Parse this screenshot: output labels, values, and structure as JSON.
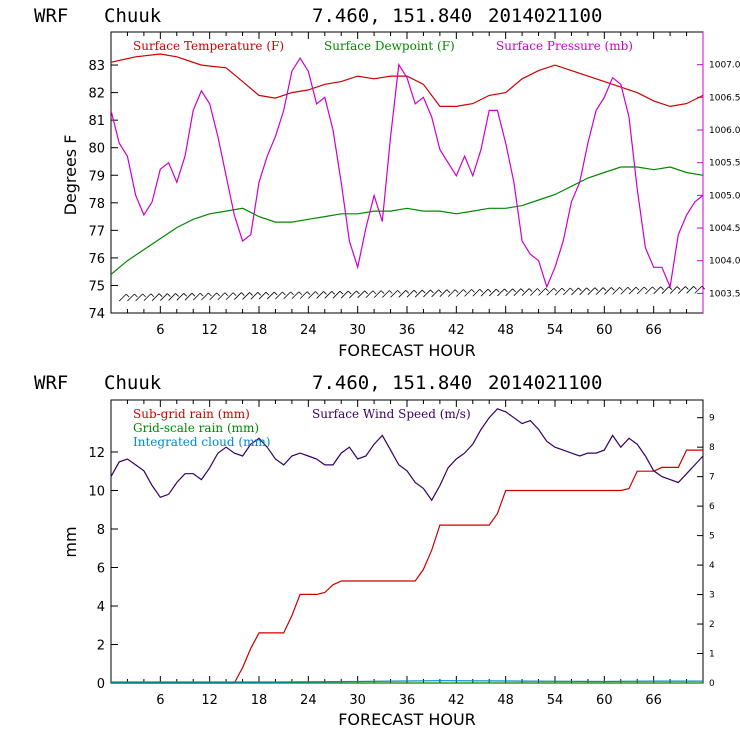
{
  "chart_data": [
    {
      "type": "line",
      "header": {
        "model": "WRF",
        "station": "Chuuk",
        "coords": "7.460, 151.840",
        "init": "2014021100"
      },
      "xlabel": "FORECAST HOUR",
      "ylabel": "Degrees F",
      "xlim": [
        0,
        72
      ],
      "ylim": [
        74,
        84.2
      ],
      "y2lim": [
        1003.2,
        1007.5
      ],
      "xticks": [
        6,
        12,
        18,
        24,
        30,
        36,
        42,
        48,
        54,
        60,
        66
      ],
      "yticks": [
        74,
        75,
        76,
        77,
        78,
        79,
        80,
        81,
        82,
        83
      ],
      "y2ticks": [
        "1003.5",
        "1004.0",
        "1004.5",
        "1005.0",
        "1005.5",
        "1006.0",
        "1006.5",
        "1007.0"
      ],
      "series": [
        {
          "name": "Surface Temperature (F)",
          "color": "#cc0000",
          "axis": "left",
          "x": [
            0,
            3,
            6,
            8,
            11,
            14,
            16,
            18,
            20,
            22,
            24,
            26,
            28,
            30,
            32,
            34,
            36,
            38,
            40,
            42,
            44,
            46,
            48,
            50,
            52,
            54,
            56,
            58,
            60,
            62,
            64,
            66,
            68,
            70,
            72
          ],
          "y": [
            83.1,
            83.3,
            83.4,
            83.3,
            83.0,
            82.9,
            82.4,
            81.9,
            81.8,
            82.0,
            82.1,
            82.3,
            82.4,
            82.6,
            82.5,
            82.6,
            82.6,
            82.3,
            81.5,
            81.5,
            81.6,
            81.9,
            82.0,
            82.5,
            82.8,
            83.0,
            82.8,
            82.6,
            82.4,
            82.2,
            82.0,
            81.7,
            81.5,
            81.6,
            81.9
          ]
        },
        {
          "name": "Surface Dewpoint (F)",
          "color": "#008800",
          "axis": "left",
          "x": [
            0,
            2,
            4,
            6,
            8,
            10,
            12,
            14,
            16,
            18,
            20,
            22,
            24,
            26,
            28,
            30,
            32,
            34,
            36,
            38,
            40,
            42,
            44,
            46,
            48,
            50,
            52,
            54,
            56,
            58,
            60,
            62,
            64,
            66,
            68,
            70,
            72
          ],
          "y": [
            75.4,
            75.9,
            76.3,
            76.7,
            77.1,
            77.4,
            77.6,
            77.7,
            77.8,
            77.5,
            77.3,
            77.3,
            77.4,
            77.5,
            77.6,
            77.6,
            77.7,
            77.7,
            77.8,
            77.7,
            77.7,
            77.6,
            77.7,
            77.8,
            77.8,
            77.9,
            78.1,
            78.3,
            78.6,
            78.9,
            79.1,
            79.3,
            79.3,
            79.2,
            79.3,
            79.1,
            79.0
          ]
        },
        {
          "name": "Surface Pressure (mb)",
          "color": "#cc00cc",
          "axis": "right",
          "x": [
            0,
            1,
            2,
            3,
            4,
            5,
            6,
            7,
            8,
            9,
            10,
            11,
            12,
            13,
            14,
            15,
            16,
            17,
            18,
            19,
            20,
            21,
            22,
            23,
            24,
            25,
            26,
            27,
            28,
            29,
            30,
            31,
            32,
            33,
            34,
            35,
            36,
            37,
            38,
            39,
            40,
            41,
            42,
            43,
            44,
            45,
            46,
            47,
            48,
            49,
            50,
            51,
            52,
            53,
            54,
            55,
            56,
            57,
            58,
            59,
            60,
            61,
            62,
            63,
            64,
            65,
            66,
            67,
            68,
            69,
            70,
            71,
            72
          ],
          "y": [
            1006.3,
            1005.8,
            1005.6,
            1005.0,
            1004.7,
            1004.9,
            1005.4,
            1005.5,
            1005.2,
            1005.6,
            1006.3,
            1006.6,
            1006.4,
            1005.9,
            1005.3,
            1004.7,
            1004.3,
            1004.4,
            1005.2,
            1005.6,
            1005.9,
            1006.3,
            1006.9,
            1007.1,
            1006.9,
            1006.4,
            1006.5,
            1006.0,
            1005.2,
            1004.3,
            1003.9,
            1004.5,
            1005.0,
            1004.6,
            1005.9,
            1007.0,
            1006.8,
            1006.4,
            1006.5,
            1006.2,
            1005.7,
            1005.5,
            1005.3,
            1005.6,
            1005.3,
            1005.7,
            1006.3,
            1006.3,
            1005.8,
            1005.2,
            1004.3,
            1004.1,
            1004.0,
            1003.6,
            1003.9,
            1004.3,
            1004.9,
            1005.2,
            1005.8,
            1006.3,
            1006.5,
            1006.8,
            1006.7,
            1006.2,
            1005.1,
            1004.2,
            1003.9,
            1003.9,
            1003.6,
            1004.4,
            1004.7,
            1004.9,
            1005.0
          ]
        }
      ],
      "wind_barbs": "row of wind barbs along the bottom of the panel"
    },
    {
      "type": "line",
      "header": {
        "model": "WRF",
        "station": "Chuuk",
        "coords": "7.460, 151.840",
        "init": "2014021100"
      },
      "xlabel": "FORECAST HOUR",
      "ylabel": "mm",
      "xlim": [
        0,
        72
      ],
      "ylim": [
        0,
        14.7
      ],
      "y2lim": [
        0,
        9.6
      ],
      "xticks": [
        6,
        12,
        18,
        24,
        30,
        36,
        42,
        48,
        54,
        60,
        66
      ],
      "yticks": [
        0,
        2,
        4,
        6,
        8,
        10,
        12
      ],
      "y2ticks": [
        "0",
        "1",
        "2",
        "3",
        "4",
        "5",
        "6",
        "7",
        "8",
        "9"
      ],
      "series": [
        {
          "name": "Sub-grid rain (mm)",
          "color": "#cc0000",
          "axis": "left",
          "x": [
            0,
            15,
            16,
            17,
            18,
            19,
            20,
            21,
            22,
            23,
            24,
            25,
            26,
            27,
            28,
            36,
            37,
            38,
            39,
            40,
            41,
            42,
            45,
            46,
            47,
            48,
            62,
            63,
            64,
            66,
            67,
            69,
            70,
            72
          ],
          "y": [
            0,
            0,
            0.8,
            1.8,
            2.6,
            2.6,
            2.6,
            2.6,
            3.5,
            4.6,
            4.6,
            4.6,
            4.7,
            5.1,
            5.3,
            5.3,
            5.3,
            5.9,
            6.9,
            8.2,
            8.2,
            8.2,
            8.2,
            8.2,
            8.8,
            10.0,
            10.0,
            10.1,
            11.0,
            11.0,
            11.2,
            11.2,
            12.1,
            12.1
          ]
        },
        {
          "name": "Grid-scale rain (mm)",
          "color": "#008800",
          "axis": "left",
          "x": [
            0,
            72
          ],
          "y": [
            0,
            0
          ]
        },
        {
          "name": "Integrated cloud (mm)",
          "color": "#0088cc",
          "axis": "left",
          "x": [
            0,
            10,
            20,
            30,
            40,
            50,
            60,
            66,
            72
          ],
          "y": [
            0.05,
            0.05,
            0.05,
            0.08,
            0.12,
            0.1,
            0.08,
            0.1,
            0.1
          ]
        },
        {
          "name": "Surface Wind Speed (m/s)",
          "color": "#330066",
          "axis": "right",
          "x": [
            0,
            1,
            2,
            3,
            4,
            5,
            6,
            7,
            8,
            9,
            10,
            11,
            12,
            13,
            14,
            15,
            16,
            17,
            18,
            19,
            20,
            21,
            22,
            23,
            24,
            25,
            26,
            27,
            28,
            29,
            30,
            31,
            32,
            33,
            34,
            35,
            36,
            37,
            38,
            39,
            40,
            41,
            42,
            43,
            44,
            45,
            46,
            47,
            48,
            49,
            50,
            51,
            52,
            53,
            54,
            55,
            56,
            57,
            58,
            59,
            60,
            61,
            62,
            63,
            64,
            65,
            66,
            67,
            68,
            69,
            70,
            71,
            72
          ],
          "y": [
            7.0,
            7.5,
            7.6,
            7.4,
            7.2,
            6.7,
            6.3,
            6.4,
            6.8,
            7.1,
            7.1,
            6.9,
            7.3,
            7.8,
            8.0,
            7.8,
            7.7,
            8.1,
            8.3,
            8.0,
            7.6,
            7.4,
            7.7,
            7.8,
            7.7,
            7.6,
            7.4,
            7.4,
            7.8,
            8.0,
            7.6,
            7.7,
            8.1,
            8.4,
            7.9,
            7.4,
            7.2,
            6.8,
            6.6,
            6.2,
            6.7,
            7.3,
            7.6,
            7.8,
            8.1,
            8.6,
            9.0,
            9.3,
            9.2,
            9.0,
            8.8,
            8.9,
            8.6,
            8.2,
            8.0,
            7.9,
            7.8,
            7.7,
            7.8,
            7.8,
            7.9,
            8.4,
            8.0,
            8.3,
            8.1,
            7.7,
            7.2,
            7.0,
            6.9,
            6.8,
            7.1,
            7.4,
            7.7
          ]
        }
      ]
    }
  ]
}
